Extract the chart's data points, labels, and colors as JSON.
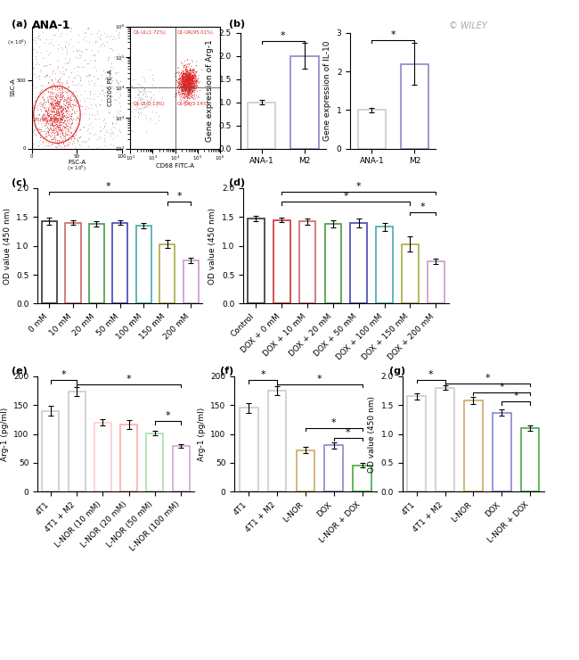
{
  "panel_b_arg1": {
    "categories": [
      "ANA-1",
      "M2"
    ],
    "values": [
      1.0,
      2.0
    ],
    "errors": [
      0.05,
      0.28
    ],
    "ylabel": "Gene expression of Arg-1",
    "ylim": [
      0,
      2.5
    ],
    "yticks": [
      0.0,
      0.5,
      1.0,
      1.5,
      2.0,
      2.5
    ]
  },
  "panel_b_il10": {
    "categories": [
      "ANA-1",
      "M2"
    ],
    "values": [
      1.0,
      2.2
    ],
    "errors": [
      0.06,
      0.55
    ],
    "ylabel": "Gene expression of IL-10",
    "ylim": [
      0,
      3
    ],
    "yticks": [
      0,
      1,
      2,
      3
    ]
  },
  "panel_c": {
    "categories": [
      "0 mM",
      "10 mM",
      "20 mM",
      "50 mM",
      "100 mM",
      "150 mM",
      "200 mM"
    ],
    "values": [
      1.43,
      1.4,
      1.38,
      1.4,
      1.35,
      1.03,
      0.75
    ],
    "errors": [
      0.06,
      0.04,
      0.04,
      0.04,
      0.05,
      0.07,
      0.05
    ],
    "ylabel": "OD value (450 nm)",
    "ylim": [
      0,
      2.0
    ],
    "yticks": [
      0.0,
      0.5,
      1.0,
      1.5,
      2.0
    ],
    "bar_colors": [
      "#333333",
      "#cc6666",
      "#449944",
      "#4444bb",
      "#44aaaa",
      "#aaaa44",
      "#cc99cc"
    ]
  },
  "panel_d": {
    "categories": [
      "Control",
      "DOX + 0 mM",
      "DOX + 10 mM",
      "DOX + 20 mM",
      "DOX + 50 mM",
      "DOX + 100 mM",
      "DOX + 150 mM",
      "DOX + 200 mM"
    ],
    "values": [
      1.47,
      1.45,
      1.42,
      1.38,
      1.4,
      1.33,
      1.03,
      0.73
    ],
    "errors": [
      0.05,
      0.04,
      0.05,
      0.06,
      0.08,
      0.07,
      0.13,
      0.05
    ],
    "ylabel": "OD value (450 nm)",
    "ylim": [
      0,
      2.0
    ],
    "yticks": [
      0.0,
      0.5,
      1.0,
      1.5,
      2.0
    ],
    "bar_colors": [
      "#333333",
      "#cc3333",
      "#cc6666",
      "#449944",
      "#4444bb",
      "#44aaaa",
      "#aaaa44",
      "#cc99cc"
    ]
  },
  "panel_e": {
    "categories": [
      "4T1",
      "4T1 + M2",
      "L-NOR (10 mM)",
      "L-NOR (20 mM)",
      "L-NOR (50 mM)",
      "L-NOR (100 mM)"
    ],
    "values": [
      140,
      173,
      120,
      116,
      101,
      79
    ],
    "errors": [
      8,
      8,
      6,
      8,
      4,
      3
    ],
    "ylabel": "Arg-1 (pg/ml)",
    "ylim": [
      0,
      200
    ],
    "yticks": [
      0,
      50,
      100,
      150,
      200
    ],
    "bar_colors": [
      "#cccccc",
      "#cccccc",
      "#ffcccc",
      "#ffaaaa",
      "#aaddaa",
      "#ccaacc"
    ]
  },
  "panel_f": {
    "categories": [
      "4T1",
      "4T1 + M2",
      "L-NOR",
      "DOX",
      "L-NOR + DOX"
    ],
    "values": [
      145,
      175,
      72,
      80,
      46
    ],
    "errors": [
      9,
      8,
      5,
      5,
      4
    ],
    "ylabel": "Arg-1 (pg/ml)",
    "ylim": [
      0,
      200
    ],
    "yticks": [
      0,
      50,
      100,
      150,
      200
    ],
    "bar_colors": [
      "#cccccc",
      "#cccccc",
      "#ccaa66",
      "#8888cc",
      "#44aa44"
    ]
  },
  "panel_g": {
    "categories": [
      "4T1",
      "4T1 + M2",
      "L-NOR",
      "DOX",
      "L-NOR + DOX"
    ],
    "values": [
      1.65,
      1.8,
      1.58,
      1.37,
      1.1
    ],
    "errors": [
      0.05,
      0.04,
      0.06,
      0.05,
      0.04
    ],
    "ylabel": "OD value (450 nm)",
    "ylim": [
      0,
      2.0
    ],
    "yticks": [
      0.0,
      0.5,
      1.0,
      1.5,
      2.0
    ],
    "bar_colors": [
      "#cccccc",
      "#cccccc",
      "#ccaa66",
      "#8888cc",
      "#44aa44"
    ]
  }
}
